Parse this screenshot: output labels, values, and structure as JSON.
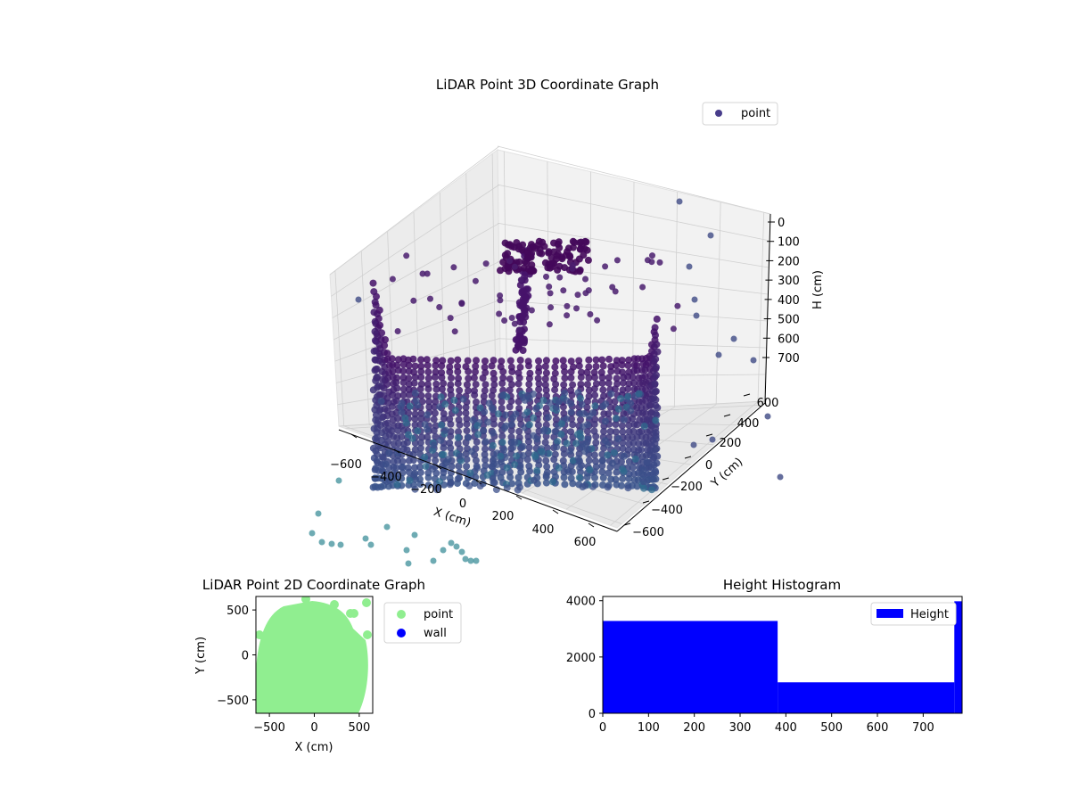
{
  "chart_data": [
    {
      "type": "scatter",
      "projection": "3d",
      "title": "LiDAR Point 3D Coordinate Graph",
      "xlabel": "X (cm)",
      "ylabel": "Y (cm)",
      "zlabel": "H (cm)",
      "x_ticks": [
        "−600",
        "−400",
        "−200",
        "0",
        "200",
        "400",
        "600"
      ],
      "y_ticks": [
        "−600",
        "−400",
        "−200",
        "0",
        "200",
        "400",
        "600"
      ],
      "z_ticks": [
        "0",
        "100",
        "200",
        "300",
        "400",
        "500",
        "600",
        "700"
      ],
      "xlim": [
        -650,
        650
      ],
      "ylim": [
        -650,
        650
      ],
      "zlim": [
        0,
        750
      ],
      "z_inverted": true,
      "legend": {
        "entries": [
          {
            "label": "point",
            "color": "#483d8b"
          }
        ],
        "position": "top-right"
      },
      "colormap": "viridis",
      "grid": true
    },
    {
      "type": "scatter",
      "title": "LiDAR Point 2D Coordinate Graph",
      "xlabel": "X (cm)",
      "ylabel": "Y (cm)",
      "x_ticks": [
        "−500",
        "0",
        "500"
      ],
      "y_ticks": [
        "500",
        "0",
        "−500"
      ],
      "xlim": [
        -650,
        650
      ],
      "ylim": [
        -650,
        650
      ],
      "series": [
        {
          "name": "point",
          "color": "#90ee90"
        },
        {
          "name": "wall",
          "color": "#0000ff"
        }
      ],
      "legend_position": "outside-right"
    },
    {
      "type": "bar",
      "subtype": "histogram",
      "title": "Height Histogram",
      "x_ticks": [
        "0",
        "100",
        "200",
        "300",
        "400",
        "500",
        "600",
        "700"
      ],
      "y_ticks": [
        "0",
        "2000",
        "4000"
      ],
      "xlim": [
        0,
        785
      ],
      "ylim": [
        0,
        4150
      ],
      "bins": [
        {
          "x0": 0,
          "x1": 382,
          "count": 3280
        },
        {
          "x0": 382,
          "x1": 768,
          "count": 1100
        },
        {
          "x0": 768,
          "x1": 785,
          "count": 3980
        }
      ],
      "color": "#0000ff",
      "legend": {
        "entries": [
          {
            "label": "Height",
            "color": "#0000ff"
          }
        ],
        "position": "top-right"
      }
    }
  ]
}
